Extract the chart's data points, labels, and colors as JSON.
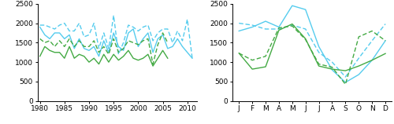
{
  "rhone_years": [
    1980,
    1981,
    1982,
    1983,
    1984,
    1985,
    1986,
    1987,
    1988,
    1989,
    1990,
    1991,
    1992,
    1993,
    1994,
    1995,
    1996,
    1997,
    1998,
    1999,
    2000,
    2001,
    2002,
    2003,
    2004,
    2005,
    2006,
    2007,
    2008,
    2009,
    2010,
    2011
  ],
  "rhone_model": [
    1900,
    1700,
    1600,
    1750,
    1750,
    1600,
    1700,
    1350,
    1600,
    1350,
    1300,
    1400,
    1150,
    1550,
    1250,
    1750,
    1400,
    1300,
    1750,
    1850,
    1400,
    1600,
    1750,
    1250,
    1600,
    1700,
    1350,
    1400,
    1600,
    1400,
    1250,
    1100
  ],
  "rhone_obs": [
    1950,
    1950,
    1900,
    1850,
    1950,
    2000,
    1800,
    1800,
    2000,
    1650,
    1700,
    2000,
    1350,
    1750,
    1350,
    2200,
    1200,
    1500,
    1950,
    1900,
    1800,
    1900,
    1950,
    1550,
    1750,
    1850,
    1850,
    1500,
    1800,
    1550,
    2100,
    1100
  ],
  "po_years": [
    1980,
    1981,
    1982,
    1983,
    1984,
    1985,
    1986,
    1987,
    1988,
    1989,
    1990,
    1991,
    1992,
    1993,
    1994,
    1995,
    1996,
    1997,
    1998,
    1999,
    2000,
    2001,
    2002,
    2003,
    2004,
    2005,
    2006
  ],
  "po_model": [
    1150,
    1400,
    1300,
    1250,
    1250,
    1100,
    1400,
    1100,
    1200,
    1150,
    1000,
    1100,
    950,
    1200,
    1000,
    1200,
    1050,
    1150,
    1300,
    1100,
    1050,
    1100,
    1200,
    900,
    1100,
    1300,
    1100
  ],
  "po_obs": [
    1600,
    1500,
    1550,
    1400,
    1550,
    1400,
    1600,
    1400,
    1550,
    1400,
    1400,
    1550,
    1250,
    1400,
    1200,
    1600,
    1250,
    1350,
    1550,
    1500,
    1450,
    1550,
    1600,
    950,
    1450,
    1750,
    1500
  ],
  "rhone_seas_model": [
    1800,
    1900,
    2050,
    1900,
    2450,
    2350,
    1400,
    800,
    480,
    680,
    1050,
    1550
  ],
  "rhone_seas_obs": [
    2000,
    1950,
    1850,
    1850,
    1950,
    1850,
    1250,
    1000,
    620,
    1100,
    1550,
    1980
  ],
  "po_seas_model": [
    1230,
    820,
    880,
    1820,
    1980,
    1600,
    900,
    820,
    780,
    900,
    1050,
    1220
  ],
  "po_seas_obs": [
    1230,
    1050,
    1150,
    1880,
    1930,
    1580,
    950,
    870,
    430,
    1650,
    1800,
    1550
  ],
  "months": [
    "J",
    "F",
    "M",
    "A",
    "M",
    "J",
    "J",
    "A",
    "S",
    "O",
    "N",
    "D"
  ],
  "color_rhone": "#55CCEE",
  "color_po": "#44AA44",
  "ylim": [
    0,
    2500
  ],
  "yticks": [
    0,
    500,
    1000,
    1500,
    2000,
    2500
  ],
  "xlim_left": [
    1979.5,
    2012
  ],
  "xticks_left": [
    1980,
    1985,
    1990,
    1995,
    2000,
    2005,
    2010
  ]
}
